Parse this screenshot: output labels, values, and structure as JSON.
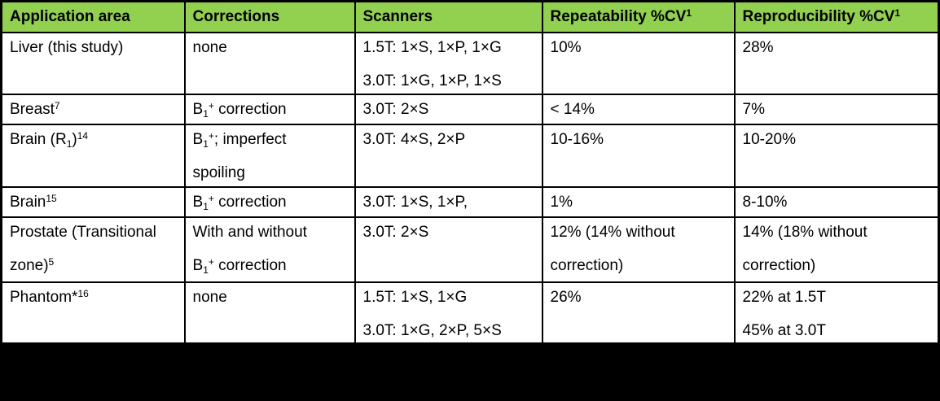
{
  "colors": {
    "header_green": "#92D050",
    "border_black": "#000000",
    "footer_black": "#000000"
  },
  "table": {
    "columns": [
      {
        "label": "Application area"
      },
      {
        "label": "Corrections"
      },
      {
        "label": "Scanners"
      },
      {
        "label": "Repeatability %CV^{1}"
      },
      {
        "label": "Reproducibility %CV^{1}"
      }
    ],
    "rows": [
      {
        "cells": [
          [
            "Liver (this study)"
          ],
          [
            "none"
          ],
          [
            "1.5T: 1×S, 1×P, 1×G",
            "3.0T: 1×G, 1×P, 1×S"
          ],
          [
            "10%"
          ],
          [
            "28%"
          ]
        ]
      },
      {
        "cells": [
          [
            "Breast^{7}"
          ],
          [
            "B_{1}^{+} correction"
          ],
          [
            "3.0T: 2×S"
          ],
          [
            "< 14%"
          ],
          [
            "7%"
          ]
        ]
      },
      {
        "cells": [
          [
            "Brain (R_{1})^{14}"
          ],
          [
            "B_{1}^{+}; imperfect",
            "spoiling"
          ],
          [
            "3.0T: 4×S, 2×P"
          ],
          [
            "10-16%"
          ],
          [
            "10-20%"
          ]
        ]
      },
      {
        "cells": [
          [
            "Brain^{15}"
          ],
          [
            "B_{1}^{+} correction"
          ],
          [
            "3.0T: 1×S, 1×P,"
          ],
          [
            "1%"
          ],
          [
            "8-10%"
          ]
        ]
      },
      {
        "cells": [
          [
            "Prostate (Transitional",
            "zone)^{5}"
          ],
          [
            "With and without",
            "B_{1}^{+} correction"
          ],
          [
            "3.0T: 2×S"
          ],
          [
            "12% (14% without",
            "correction)"
          ],
          [
            "14% (18% without",
            "correction)"
          ]
        ]
      },
      {
        "cells": [
          [
            "Phantom*^{16}"
          ],
          [
            "none"
          ],
          [
            "1.5T: 1×S, 1×G",
            "3.0T: 1×G, 2×P, 5×S"
          ],
          [
            "26%"
          ],
          [
            "22% at 1.5T",
            "45% at 3.0T"
          ]
        ]
      }
    ]
  }
}
